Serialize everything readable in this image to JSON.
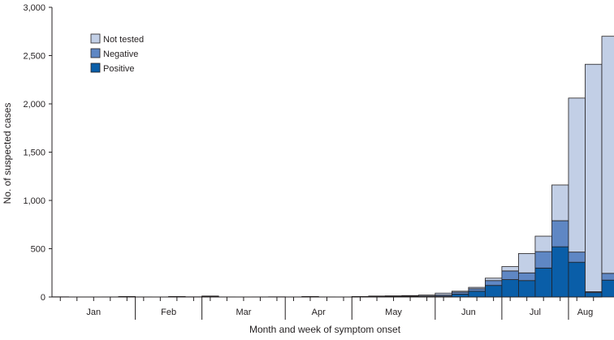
{
  "chart_data": {
    "type": "bar",
    "stacked": true,
    "title": "",
    "xlabel": "Month and week of symptom onset",
    "ylabel": "No. of suspected cases",
    "ylim": [
      0,
      3000
    ],
    "yticks": [
      0,
      500,
      1000,
      1500,
      2000,
      2500,
      3000
    ],
    "ytick_labels": [
      "0",
      "500",
      "1,000",
      "1,500",
      "2,000",
      "2,500",
      "3,000"
    ],
    "months": [
      {
        "label": "Jan",
        "weeks": 5
      },
      {
        "label": "Feb",
        "weeks": 4
      },
      {
        "label": "Mar",
        "weeks": 5
      },
      {
        "label": "Apr",
        "weeks": 4
      },
      {
        "label": "May",
        "weeks": 5
      },
      {
        "label": "Jun",
        "weeks": 4
      },
      {
        "label": "Jul",
        "weeks": 4
      },
      {
        "label": "Aug",
        "weeks": 2
      }
    ],
    "legend_position": "top-left",
    "series": [
      {
        "name": "Positive",
        "color": "#0a5ea8",
        "values": [
          0,
          0,
          0,
          0,
          2,
          0,
          0,
          2,
          0,
          5,
          0,
          0,
          0,
          0,
          0,
          2,
          0,
          0,
          2,
          3,
          3,
          4,
          5,
          8,
          30,
          60,
          120,
          180,
          170,
          300,
          520,
          360,
          45,
          175
        ]
      },
      {
        "name": "Negative",
        "color": "#5f87c4",
        "values": [
          0,
          0,
          0,
          0,
          1,
          0,
          0,
          1,
          0,
          2,
          0,
          0,
          0,
          0,
          0,
          1,
          0,
          0,
          1,
          2,
          3,
          4,
          5,
          12,
          20,
          25,
          50,
          90,
          80,
          170,
          270,
          105,
          10,
          70
        ]
      },
      {
        "name": "Not tested",
        "color": "#c2cfe6",
        "values": [
          2,
          0,
          0,
          1,
          2,
          1,
          0,
          2,
          2,
          3,
          1,
          0,
          1,
          2,
          1,
          2,
          1,
          0,
          2,
          5,
          6,
          7,
          10,
          20,
          10,
          15,
          25,
          45,
          200,
          160,
          370,
          1595,
          2355,
          2455
        ]
      }
    ]
  }
}
